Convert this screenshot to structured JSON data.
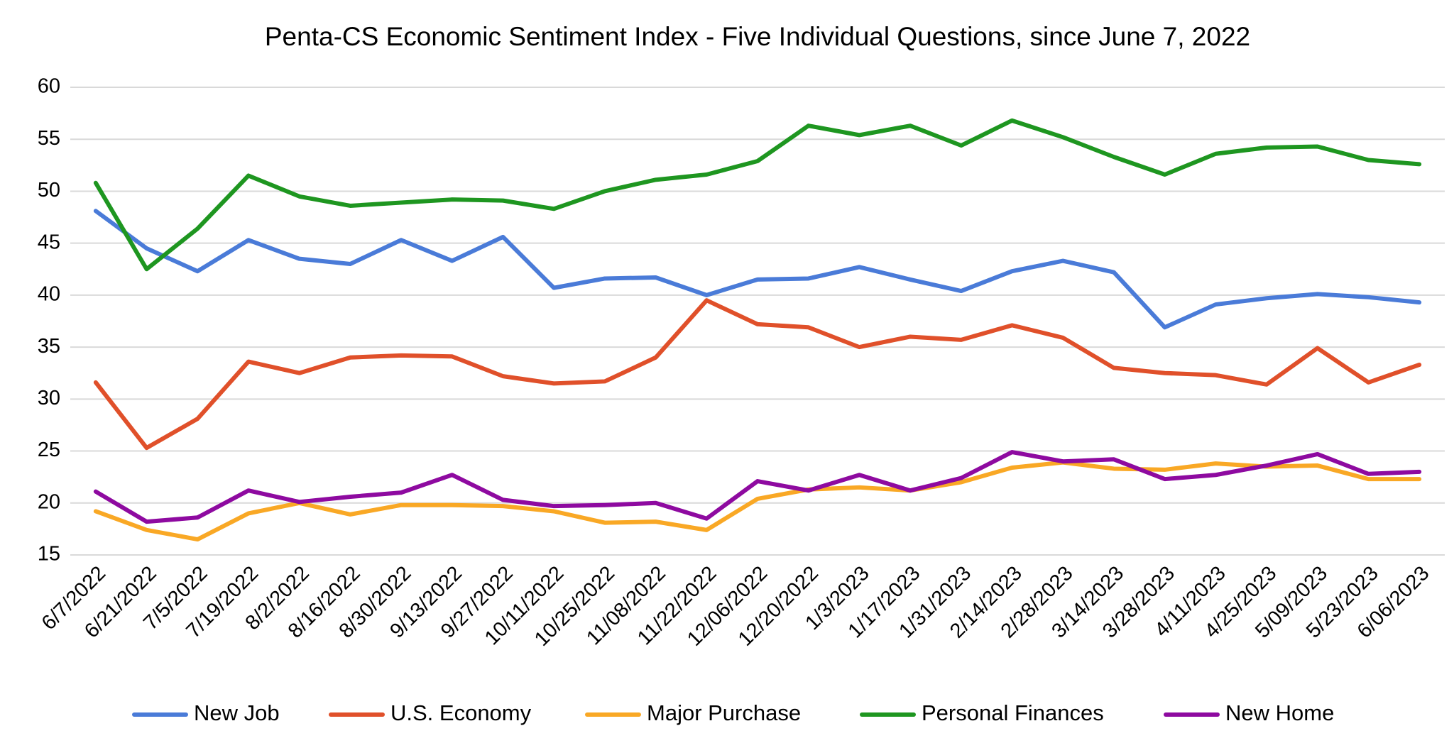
{
  "chart_data": {
    "type": "line",
    "title": "Penta-CS Economic Sentiment Index - Five Individual Questions, since June 7, 2022",
    "categories": [
      "6/7/2022",
      "6/21/2022",
      "7/5/2022",
      "7/19/2022",
      "8/2/2022",
      "8/16/2022",
      "8/30/2022",
      "9/13/2022",
      "9/27/2022",
      "10/11/2022",
      "10/25/2022",
      "11/08/2022",
      "11/22/2022",
      "12/06/2022",
      "12/20/2022",
      "1/3/2023",
      "1/17/2023",
      "1/31/2023",
      "2/14/2023",
      "2/28/2023",
      "3/14/2023",
      "3/28/2023",
      "4/11/2023",
      "4/25/2023",
      "5/09/2023",
      "5/23/2023",
      "6/06/2023"
    ],
    "series": [
      {
        "name": "New Job",
        "color": "#4a7bd8",
        "values": [
          48.1,
          44.5,
          42.3,
          45.3,
          43.5,
          43.0,
          45.3,
          43.3,
          45.6,
          40.7,
          41.6,
          41.7,
          40.0,
          41.5,
          41.6,
          42.7,
          41.5,
          40.4,
          42.3,
          43.3,
          42.2,
          36.9,
          39.1,
          39.7,
          40.1,
          39.8,
          39.3
        ]
      },
      {
        "name": "U.S. Economy",
        "color": "#e0502a",
        "values": [
          31.6,
          25.3,
          28.1,
          33.6,
          32.5,
          34.0,
          34.2,
          34.1,
          32.2,
          31.5,
          31.7,
          34.0,
          39.5,
          37.2,
          36.9,
          35.0,
          36.0,
          35.7,
          37.1,
          35.9,
          33.0,
          32.5,
          32.3,
          31.4,
          34.9,
          31.6,
          33.3
        ]
      },
      {
        "name": "Major Purchase",
        "color": "#f9a825",
        "values": [
          19.2,
          17.4,
          16.5,
          19.0,
          20.0,
          18.9,
          19.8,
          19.8,
          19.7,
          19.2,
          18.1,
          18.2,
          17.4,
          20.4,
          21.3,
          21.5,
          21.2,
          22.0,
          23.4,
          23.9,
          23.3,
          23.2,
          23.8,
          23.5,
          23.6,
          22.3,
          22.3
        ]
      },
      {
        "name": "Personal Finances",
        "color": "#1e9620",
        "values": [
          50.8,
          42.5,
          46.4,
          51.5,
          49.5,
          48.6,
          48.9,
          49.2,
          49.1,
          48.3,
          50.0,
          51.1,
          51.6,
          52.9,
          56.3,
          55.4,
          56.3,
          54.4,
          56.8,
          55.2,
          53.3,
          51.6,
          53.6,
          54.2,
          54.3,
          53.0,
          52.6
        ]
      },
      {
        "name": "New Home",
        "color": "#8e0aa0",
        "values": [
          21.1,
          18.2,
          18.6,
          21.2,
          20.1,
          20.6,
          21.0,
          22.7,
          20.3,
          19.7,
          19.8,
          20.0,
          18.5,
          22.1,
          21.2,
          22.7,
          21.2,
          22.4,
          24.9,
          24.0,
          24.2,
          22.3,
          22.7,
          23.6,
          24.7,
          22.8,
          23.0
        ]
      }
    ],
    "ylim": [
      15,
      60
    ],
    "yticks": [
      15,
      20,
      25,
      30,
      35,
      40,
      45,
      50,
      55,
      60
    ],
    "grid": true,
    "legend": "bottom"
  }
}
